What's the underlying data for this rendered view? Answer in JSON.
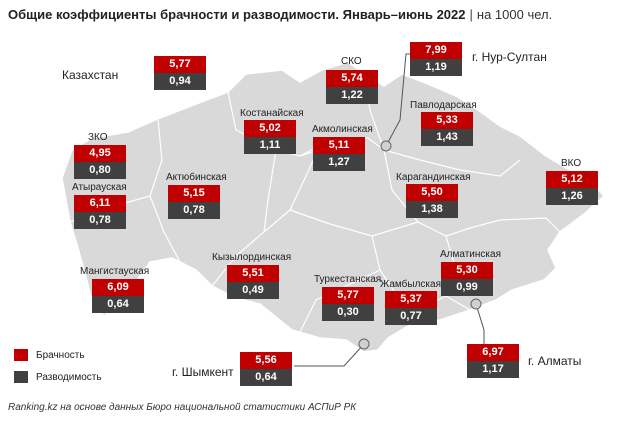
{
  "title": {
    "main": "Общие коэффициенты брачности и разводимости. Январь–июнь 2022",
    "separator": "|",
    "unit": "на 1000 чел."
  },
  "colors": {
    "marriage": "#c00000",
    "divorce": "#404040",
    "map_fill": "#d9d9d9"
  },
  "regions": {
    "kazakhstan": {
      "name": "Казахстан",
      "marriage": "5,77",
      "divorce": "0,94"
    },
    "nur_sultan": {
      "name": "г. Нур-Султан",
      "marriage": "7,99",
      "divorce": "1,19"
    },
    "sko": {
      "name": "СКО",
      "marriage": "5,74",
      "divorce": "1,22"
    },
    "kostanay": {
      "name": "Костанайская",
      "marriage": "5,02",
      "divorce": "1,11"
    },
    "akmola": {
      "name": "Акмолинская",
      "marriage": "5,11",
      "divorce": "1,27"
    },
    "pavlodar": {
      "name": "Павлодарская",
      "marriage": "5,33",
      "divorce": "1,43"
    },
    "zko": {
      "name": "ЗКО",
      "marriage": "4,95",
      "divorce": "0,80"
    },
    "atyrau": {
      "name": "Атырауская",
      "marriage": "6,11",
      "divorce": "0,78"
    },
    "aktobe": {
      "name": "Актюбинская",
      "marriage": "5,15",
      "divorce": "0,78"
    },
    "karaganda": {
      "name": "Карагандинская",
      "marriage": "5,50",
      "divorce": "1,38"
    },
    "vko": {
      "name": "ВКО",
      "marriage": "5,12",
      "divorce": "1,26"
    },
    "kyzylorda": {
      "name": "Кызылординская",
      "marriage": "5,51",
      "divorce": "0,49"
    },
    "almaty_obl": {
      "name": "Алматинская",
      "marriage": "5,30",
      "divorce": "0,99"
    },
    "mangystau": {
      "name": "Мангистауская",
      "marriage": "6,09",
      "divorce": "0,64"
    },
    "turkestan": {
      "name": "Туркестанская",
      "marriage": "5,77",
      "divorce": "0,30"
    },
    "zhambyl": {
      "name": "Жамбылская",
      "marriage": "5,37",
      "divorce": "0,77"
    },
    "almaty": {
      "name": "г. Алматы",
      "marriage": "6,97",
      "divorce": "1,17"
    },
    "shymkent": {
      "name": "г. Шымкент",
      "marriage": "5,56",
      "divorce": "0,64"
    }
  },
  "legend": {
    "marriage": "Брачность",
    "divorce": "Разводимость"
  },
  "source": "Ranking.kz на основе данных Бюро национальной статистики АСПиР РК"
}
